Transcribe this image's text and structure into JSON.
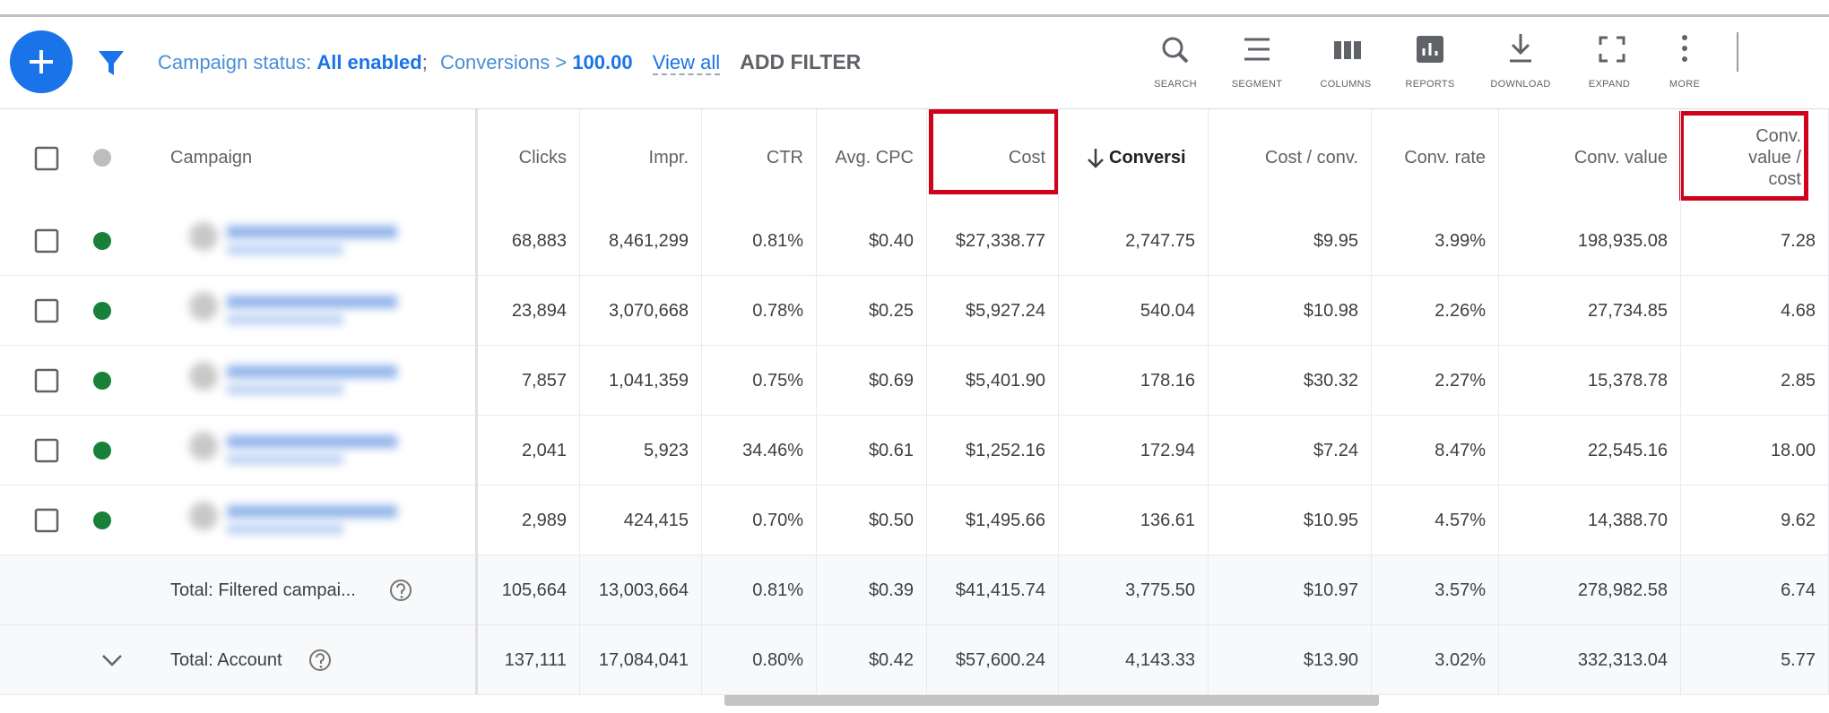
{
  "toolbar": {
    "status_label": "Campaign status:",
    "status_value": "All enabled",
    "separator": ";",
    "conv_label": "Conversions >",
    "conv_value": "100.00",
    "view_all": "View all",
    "add_filter": "ADD FILTER",
    "tools": [
      "SEARCH",
      "SEGMENT",
      "COLUMNS",
      "REPORTS",
      "DOWNLOAD",
      "EXPAND",
      "MORE"
    ]
  },
  "table": {
    "columns": [
      "Campaign",
      "Clicks",
      "Impr.",
      "CTR",
      "Avg. CPC",
      "Cost",
      "Conversi",
      "Cost / conv.",
      "Conv. rate",
      "Conv. value",
      "Conv. value / cost"
    ],
    "rows": [
      [
        "68,883",
        "8,461,299",
        "0.81%",
        "$0.40",
        "$27,338.77",
        "2,747.75",
        "$9.95",
        "3.99%",
        "198,935.08",
        "7.28"
      ],
      [
        "23,894",
        "3,070,668",
        "0.78%",
        "$0.25",
        "$5,927.24",
        "540.04",
        "$10.98",
        "2.26%",
        "27,734.85",
        "4.68"
      ],
      [
        "7,857",
        "1,041,359",
        "0.75%",
        "$0.69",
        "$5,401.90",
        "178.16",
        "$30.32",
        "2.27%",
        "15,378.78",
        "2.85"
      ],
      [
        "2,041",
        "5,923",
        "34.46%",
        "$0.61",
        "$1,252.16",
        "172.94",
        "$7.24",
        "8.47%",
        "22,545.16",
        "18.00"
      ],
      [
        "2,989",
        "424,415",
        "0.70%",
        "$0.50",
        "$1,495.66",
        "136.61",
        "$10.95",
        "4.57%",
        "14,388.70",
        "9.62"
      ]
    ],
    "totals": [
      {
        "label": "Total: Filtered campai...",
        "values": [
          "105,664",
          "13,003,664",
          "0.81%",
          "$0.39",
          "$41,415.74",
          "3,775.50",
          "$10.97",
          "3.57%",
          "278,982.58",
          "6.74"
        ]
      },
      {
        "label": "Total: Account",
        "values": [
          "137,111",
          "17,084,041",
          "0.80%",
          "$0.42",
          "$57,600.24",
          "4,143.33",
          "$13.90",
          "3.02%",
          "332,313.04",
          "5.77"
        ]
      }
    ]
  }
}
